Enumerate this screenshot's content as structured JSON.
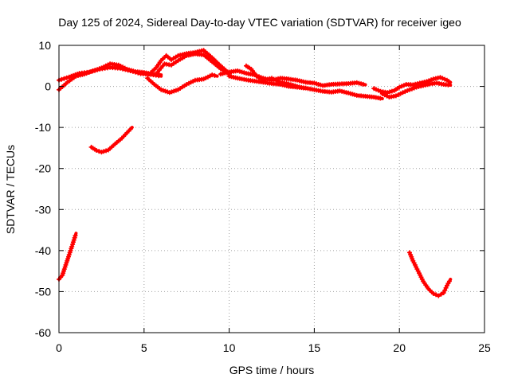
{
  "chart_data": {
    "type": "scatter",
    "title": "Day 125 of 2024, Sidereal Day-to-day VTEC variation (SDTVAR) for receiver igeo",
    "xlabel": "GPS time / hours",
    "ylabel": "SDTVAR / TECUs",
    "xlim": [
      0,
      25
    ],
    "ylim": [
      -60,
      10
    ],
    "xticks": [
      0,
      5,
      10,
      15,
      20,
      25
    ],
    "yticks": [
      10,
      0,
      -10,
      -20,
      -30,
      -40,
      -50,
      -60
    ],
    "grid": true,
    "series_color": "#ff0000",
    "series": [
      {
        "name": "arc-1",
        "points": [
          [
            0.0,
            -47.0
          ],
          [
            0.2,
            -46.0
          ],
          [
            0.4,
            -43.5
          ],
          [
            0.6,
            -41.0
          ],
          [
            0.8,
            -38.5
          ],
          [
            1.0,
            -35.8
          ]
        ]
      },
      {
        "name": "arc-2",
        "points": [
          [
            1.9,
            -14.8
          ],
          [
            2.2,
            -15.6
          ],
          [
            2.5,
            -16.0
          ],
          [
            2.9,
            -15.5
          ],
          [
            3.3,
            -14.0
          ],
          [
            3.7,
            -12.6
          ],
          [
            4.0,
            -11.3
          ],
          [
            4.3,
            -10.0
          ]
        ]
      },
      {
        "name": "arc-3",
        "points": [
          [
            0.0,
            -0.8
          ],
          [
            0.5,
            1.0
          ],
          [
            1.0,
            2.5
          ],
          [
            1.5,
            3.0
          ],
          [
            2.0,
            3.8
          ],
          [
            2.5,
            4.5
          ],
          [
            3.0,
            5.5
          ],
          [
            3.5,
            5.2
          ],
          [
            4.0,
            4.2
          ],
          [
            4.5,
            3.6
          ],
          [
            5.0,
            3.4
          ],
          [
            5.5,
            3.0
          ],
          [
            6.0,
            2.8
          ]
        ]
      },
      {
        "name": "arc-4",
        "points": [
          [
            0.0,
            1.5
          ],
          [
            0.6,
            2.3
          ],
          [
            1.2,
            3.2
          ],
          [
            1.8,
            3.5
          ],
          [
            2.4,
            4.2
          ],
          [
            3.0,
            4.6
          ],
          [
            3.6,
            4.4
          ],
          [
            4.2,
            3.8
          ],
          [
            4.8,
            3.1
          ],
          [
            5.4,
            2.9
          ],
          [
            6.0,
            2.5
          ]
        ]
      },
      {
        "name": "arc-5",
        "points": [
          [
            5.2,
            2.0
          ],
          [
            5.6,
            0.5
          ],
          [
            6.0,
            -0.8
          ],
          [
            6.5,
            -1.5
          ],
          [
            7.0,
            -0.8
          ],
          [
            7.5,
            0.5
          ],
          [
            8.0,
            1.5
          ],
          [
            8.5,
            1.8
          ],
          [
            9.0,
            2.8
          ],
          [
            9.3,
            2.5
          ]
        ]
      },
      {
        "name": "arc-6",
        "points": [
          [
            5.3,
            3.0
          ],
          [
            5.7,
            4.5
          ],
          [
            6.0,
            6.3
          ],
          [
            6.3,
            7.5
          ],
          [
            6.6,
            6.5
          ],
          [
            7.0,
            7.5
          ],
          [
            7.5,
            8.0
          ],
          [
            8.0,
            8.3
          ],
          [
            8.5,
            8.8
          ],
          [
            9.0,
            7.0
          ],
          [
            9.5,
            5.0
          ],
          [
            10.0,
            3.2
          ]
        ]
      },
      {
        "name": "arc-7",
        "points": [
          [
            5.8,
            3.5
          ],
          [
            6.2,
            5.5
          ],
          [
            6.6,
            5.2
          ],
          [
            7.0,
            6.3
          ],
          [
            7.5,
            7.5
          ],
          [
            8.0,
            7.9
          ],
          [
            8.5,
            7.7
          ],
          [
            9.0,
            6.0
          ],
          [
            9.5,
            4.3
          ],
          [
            10.0,
            3.0
          ]
        ]
      },
      {
        "name": "arc-8",
        "points": [
          [
            9.5,
            3.0
          ],
          [
            10.0,
            3.5
          ],
          [
            10.5,
            3.8
          ],
          [
            11.0,
            3.2
          ],
          [
            11.5,
            2.8
          ],
          [
            12.0,
            2.0
          ],
          [
            12.5,
            1.5
          ],
          [
            13.0,
            2.0
          ],
          [
            13.5,
            1.8
          ],
          [
            14.0,
            1.5
          ],
          [
            14.5,
            1.0
          ],
          [
            15.0,
            0.8
          ],
          [
            15.5,
            0.2
          ],
          [
            16.0,
            0.5
          ],
          [
            16.5,
            0.6
          ],
          [
            17.0,
            0.7
          ],
          [
            17.5,
            0.9
          ],
          [
            18.0,
            0.4
          ]
        ]
      },
      {
        "name": "arc-9",
        "points": [
          [
            10.0,
            2.5
          ],
          [
            10.5,
            2.0
          ],
          [
            11.0,
            1.6
          ],
          [
            11.5,
            1.3
          ],
          [
            12.0,
            1.0
          ],
          [
            12.5,
            0.7
          ],
          [
            13.0,
            0.5
          ],
          [
            13.5,
            0.0
          ],
          [
            14.0,
            -0.2
          ],
          [
            14.5,
            -0.4
          ],
          [
            15.0,
            -0.8
          ],
          [
            15.5,
            -1.2
          ],
          [
            16.0,
            -1.4
          ],
          [
            16.5,
            -1.1
          ],
          [
            17.0,
            -1.6
          ],
          [
            17.5,
            -2.2
          ],
          [
            18.0,
            -2.4
          ],
          [
            18.5,
            -2.6
          ],
          [
            19.0,
            -3.0
          ]
        ]
      },
      {
        "name": "arc-10",
        "points": [
          [
            11.0,
            5.0
          ],
          [
            11.3,
            4.2
          ],
          [
            11.6,
            2.5
          ],
          [
            12.0,
            1.5
          ],
          [
            12.5,
            2.0
          ],
          [
            13.0,
            1.0
          ],
          [
            13.5,
            0.6
          ],
          [
            14.0,
            0.0
          ],
          [
            14.5,
            -0.5
          ]
        ]
      },
      {
        "name": "arc-11",
        "points": [
          [
            18.5,
            -0.5
          ],
          [
            18.9,
            -1.2
          ],
          [
            19.3,
            -1.5
          ],
          [
            19.7,
            -1.0
          ],
          [
            20.0,
            -0.2
          ],
          [
            20.4,
            0.5
          ],
          [
            20.8,
            0.4
          ],
          [
            21.2,
            0.8
          ],
          [
            21.6,
            1.2
          ],
          [
            22.0,
            1.8
          ],
          [
            22.4,
            2.2
          ],
          [
            22.8,
            1.5
          ],
          [
            23.0,
            1.0
          ]
        ]
      },
      {
        "name": "arc-12",
        "points": [
          [
            19.0,
            -1.8
          ],
          [
            19.4,
            -2.6
          ],
          [
            19.8,
            -2.3
          ],
          [
            20.2,
            -1.5
          ],
          [
            20.6,
            -0.8
          ],
          [
            21.0,
            -0.2
          ],
          [
            21.4,
            0.2
          ],
          [
            21.8,
            0.6
          ],
          [
            22.2,
            0.8
          ],
          [
            22.6,
            0.5
          ],
          [
            23.0,
            0.3
          ]
        ]
      },
      {
        "name": "arc-13",
        "points": [
          [
            20.6,
            -40.5
          ],
          [
            20.8,
            -42.5
          ],
          [
            21.1,
            -45.0
          ],
          [
            21.4,
            -47.5
          ],
          [
            21.7,
            -49.3
          ],
          [
            22.0,
            -50.5
          ],
          [
            22.3,
            -51.0
          ],
          [
            22.6,
            -50.3
          ],
          [
            22.8,
            -48.5
          ],
          [
            23.0,
            -47.0
          ]
        ]
      }
    ]
  }
}
